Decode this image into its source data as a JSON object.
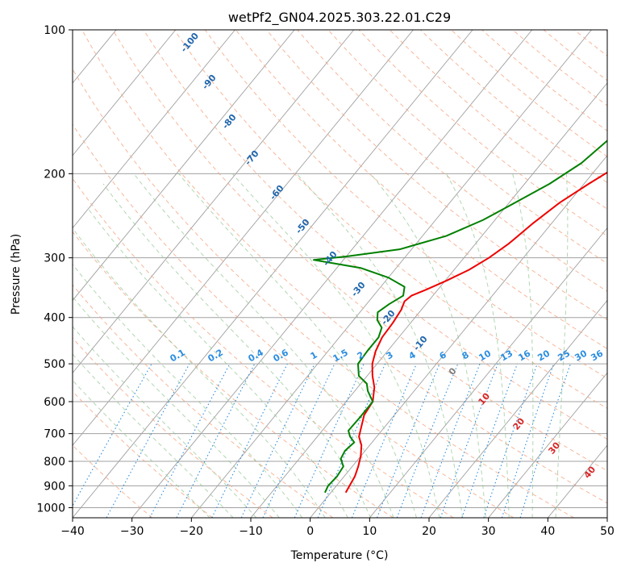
{
  "chart_data": {
    "type": "line",
    "title": "wetPf2_GN04.2025.303.22.01.C29",
    "xlabel": "Temperature (°C)",
    "ylabel": "Pressure (hPa)",
    "xlim": [
      -40,
      50
    ],
    "ylim": [
      1050,
      100
    ],
    "y_scale": "log",
    "x_ticks": [
      -40,
      -30,
      -20,
      -10,
      0,
      10,
      20,
      30,
      40,
      50
    ],
    "x_tick_labels": [
      "−40",
      "−30",
      "−20",
      "−10",
      "0",
      "10",
      "20",
      "30",
      "40",
      "50"
    ],
    "y_ticks": [
      1000,
      900,
      800,
      700,
      600,
      500,
      400,
      300,
      200,
      100
    ],
    "y_tick_labels": [
      "1000",
      "900",
      "800",
      "700",
      "600",
      "500",
      "400",
      "300",
      "200",
      "100"
    ],
    "grid": true,
    "series": [
      {
        "color": "#ee0000",
        "points": [
          [
            2.5,
            930
          ],
          [
            2.2,
            900
          ],
          [
            1.8,
            860
          ],
          [
            1.0,
            820
          ],
          [
            0.0,
            780
          ],
          [
            -1.4,
            740
          ],
          [
            -3.0,
            710
          ],
          [
            -5.1,
            640
          ],
          [
            -5.5,
            600
          ],
          [
            -7.2,
            560
          ],
          [
            -9.1,
            530
          ],
          [
            -10.8,
            500
          ],
          [
            -12.0,
            470
          ],
          [
            -12.8,
            440
          ],
          [
            -13.0,
            410
          ],
          [
            -13.4,
            385
          ],
          [
            -14.0,
            370
          ],
          [
            -13.6,
            360
          ],
          [
            -12.0,
            350
          ],
          [
            -9.8,
            335
          ],
          [
            -7.5,
            318
          ],
          [
            -5.8,
            300
          ],
          [
            -4.4,
            280
          ],
          [
            -3.2,
            255
          ],
          [
            -1.5,
            230
          ],
          [
            0.8,
            210
          ],
          [
            3.3,
            192
          ],
          [
            7.0,
            176
          ],
          [
            10.8,
            163
          ],
          [
            14.2,
            150
          ],
          [
            19.6,
            137
          ],
          [
            26.0,
            126
          ],
          [
            30.5,
            118
          ],
          [
            34.8,
            110
          ],
          [
            38.2,
            105
          ],
          [
            41.0,
            100
          ]
        ]
      },
      {
        "color": "#008000",
        "points": [
          [
            -1.0,
            930
          ],
          [
            -1.4,
            900
          ],
          [
            -1.2,
            860
          ],
          [
            -1.5,
            820
          ],
          [
            -3.0,
            790
          ],
          [
            -3.4,
            760
          ],
          [
            -3.0,
            730
          ],
          [
            -4.5,
            710
          ],
          [
            -5.6,
            690
          ],
          [
            -5.5,
            650
          ],
          [
            -5.5,
            600
          ],
          [
            -7.8,
            570
          ],
          [
            -9.0,
            550
          ],
          [
            -11.4,
            530
          ],
          [
            -13.2,
            500
          ],
          [
            -13.4,
            470
          ],
          [
            -13.4,
            440
          ],
          [
            -14.2,
            420
          ],
          [
            -16.0,
            405
          ],
          [
            -17.0,
            390
          ],
          [
            -16.2,
            375
          ],
          [
            -15.0,
            360
          ],
          [
            -16.0,
            345
          ],
          [
            -20.0,
            330
          ],
          [
            -26.0,
            315
          ],
          [
            -35.0,
            303
          ],
          [
            -30.0,
            298
          ],
          [
            -22.0,
            288
          ],
          [
            -16.0,
            270
          ],
          [
            -12.0,
            250
          ],
          [
            -9.0,
            230
          ],
          [
            -5.8,
            210
          ],
          [
            -3.3,
            190
          ],
          [
            -2.0,
            170
          ],
          [
            -1.6,
            150
          ],
          [
            -2.5,
            140
          ],
          [
            -4.4,
            132
          ],
          [
            -4.2,
            127
          ],
          [
            -2.0,
            122
          ],
          [
            2.0,
            116
          ],
          [
            5.0,
            110
          ],
          [
            5.5,
            105
          ],
          [
            5.5,
            100
          ]
        ]
      }
    ],
    "annotations": {
      "dry_adiabat_labels": [
        "-100",
        "-90",
        "-80",
        "-70",
        "-60",
        "-50",
        "-40",
        "-30",
        "-20",
        "-10"
      ],
      "moist_adiabat_labels": [
        "0",
        "10",
        "20",
        "30",
        "40"
      ],
      "mixing_ratio_labels": [
        "0.1",
        "0.2",
        "0.4",
        "0.6",
        "1",
        "1.5",
        "2",
        "3",
        "4",
        "6",
        "8",
        "10",
        "13",
        "16",
        "20",
        "25",
        "30",
        "36"
      ]
    },
    "background_lines": {
      "dry_adiabats_color": "#f4a582",
      "moist_adiabats_color": "#92c592",
      "isotherm_color": "#a0a0a0",
      "mixing_ratio_color": "#2b8de0"
    },
    "label_colors": {
      "dry": "#2166ac",
      "moist": "#d62728",
      "mixing": "#2b8de0",
      "zero": "#808080"
    }
  }
}
